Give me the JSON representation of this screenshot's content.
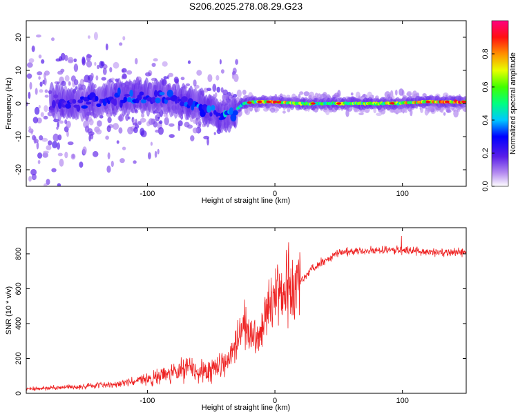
{
  "title": "S206.2025.278.08.29.G23",
  "chart_data": [
    {
      "type": "heatmap",
      "name": "spectrogram",
      "xlabel": "Height of straight line (km)",
      "ylabel": "Frequency (Hz)",
      "xlim": [
        -195,
        150
      ],
      "ylim": [
        -25,
        25
      ],
      "xticks": [
        -100,
        0,
        100
      ],
      "xtick_labels": [
        "-100",
        "0",
        "100"
      ],
      "yticks": [
        -20,
        -10,
        0,
        10,
        20
      ],
      "ytick_labels": [
        "-20",
        "-10",
        "0",
        "10",
        "20"
      ],
      "colorbar": {
        "label": "Normalized spectral amplitude",
        "range": [
          0,
          1
        ],
        "ticks": [
          0.0,
          0.2,
          0.4,
          0.6,
          0.8
        ],
        "tick_labels": [
          "0.0",
          "0.2",
          "0.4",
          "0.6",
          "0.8"
        ],
        "colors": [
          "#ffffff",
          "#8a2be2",
          "#0000ff",
          "#00ffff",
          "#00ff00",
          "#ffff00",
          "#ff8000",
          "#ff0000",
          "#ff00aa"
        ]
      },
      "ridge": {
        "x": [
          -170,
          -150,
          -130,
          -110,
          -90,
          -75,
          -60,
          -50,
          -40,
          -33,
          -25,
          -15,
          0,
          20,
          50,
          90,
          120,
          150
        ],
        "freq": [
          0.5,
          0.3,
          1.5,
          2.0,
          2.0,
          1.0,
          0.0,
          -2.0,
          -4.0,
          -3.0,
          0.0,
          0.5,
          0.5,
          0.0,
          0.0,
          0.0,
          0.5,
          0.5
        ],
        "amplitude": [
          0.2,
          0.25,
          0.25,
          0.3,
          0.3,
          0.25,
          0.3,
          0.3,
          0.35,
          0.3,
          0.5,
          0.6,
          0.7,
          0.55,
          0.55,
          0.6,
          0.7,
          0.75
        ]
      }
    },
    {
      "type": "line",
      "name": "snr",
      "xlabel": "Height of straight line (km)",
      "ylabel": "SNR (10 * v/v)",
      "xlim": [
        -195,
        150
      ],
      "ylim": [
        0,
        950
      ],
      "xticks": [
        -100,
        0,
        100
      ],
      "xtick_labels": [
        "-100",
        "0",
        "100"
      ],
      "yticks": [
        0,
        200,
        400,
        600,
        800
      ],
      "ytick_labels": [
        "0",
        "200",
        "400",
        "600",
        "800"
      ],
      "color": "#ee2222",
      "trend": {
        "x": [
          -195,
          -150,
          -120,
          -100,
          -80,
          -70,
          -60,
          -50,
          -40,
          -35,
          -30,
          -25,
          -20,
          -15,
          -10,
          -5,
          0,
          10,
          20,
          30,
          50,
          80,
          100,
          120,
          150
        ],
        "y": [
          25,
          40,
          55,
          80,
          120,
          150,
          120,
          140,
          170,
          220,
          300,
          380,
          350,
          300,
          380,
          500,
          560,
          600,
          640,
          720,
          810,
          820,
          820,
          810,
          810
        ]
      }
    }
  ]
}
